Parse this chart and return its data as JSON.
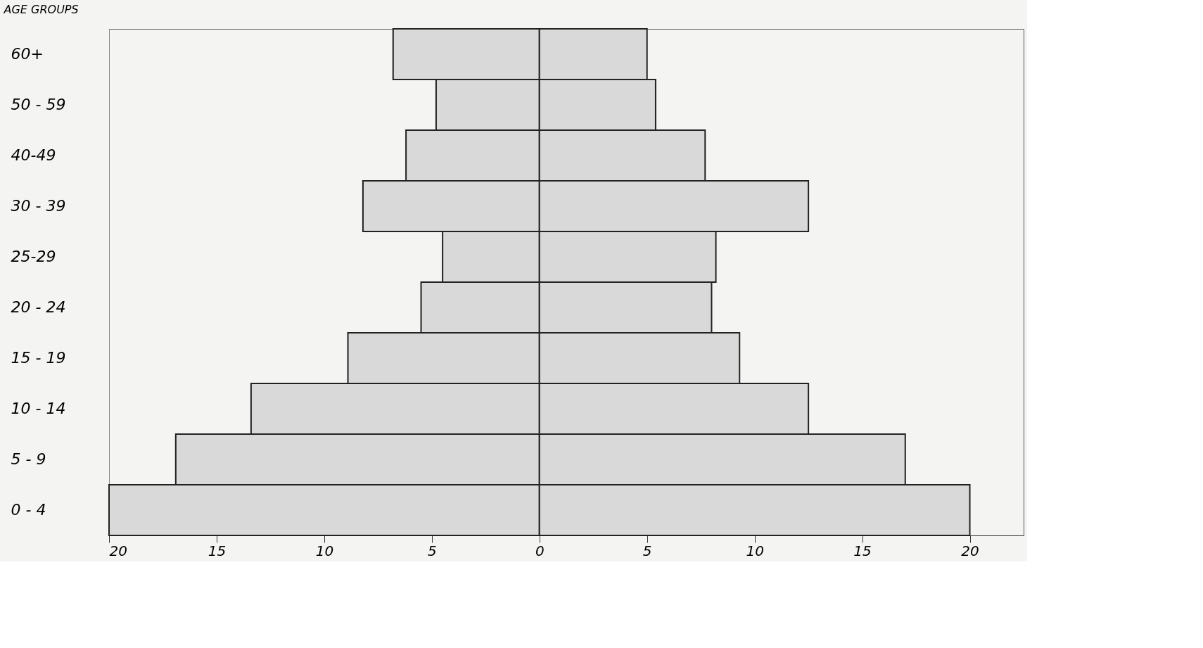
{
  "chart_data": {
    "type": "bar",
    "orientation": "horizontal",
    "ylabel": "AGE GROUPS",
    "categories": [
      "60+",
      "50 - 59",
      "40-49",
      "30 - 39",
      "25-29",
      "20 - 24",
      "15 - 19",
      "10 - 14",
      "5 - 9",
      "0 - 4"
    ],
    "series": [
      {
        "color": "#d9d9d9",
        "values": [
          -6.8,
          -4.8,
          -6.2,
          -8.2,
          -4.5,
          -5.5,
          -8.9,
          -13.4,
          -16.9,
          -20
        ]
      },
      {
        "color": "#d9d9d9",
        "values": [
          5.0,
          5.4,
          7.7,
          12.5,
          8.2,
          8.0,
          9.3,
          12.5,
          17.0,
          20
        ]
      }
    ],
    "xlim": [
      -20,
      22.5
    ],
    "xticks": [
      {
        "value": -20,
        "label": "20"
      },
      {
        "value": -15,
        "label": "15"
      },
      {
        "value": -10,
        "label": "10"
      },
      {
        "value": -5,
        "label": "5"
      },
      0,
      5,
      10,
      15,
      20
    ],
    "stacked": true,
    "legend": false
  }
}
